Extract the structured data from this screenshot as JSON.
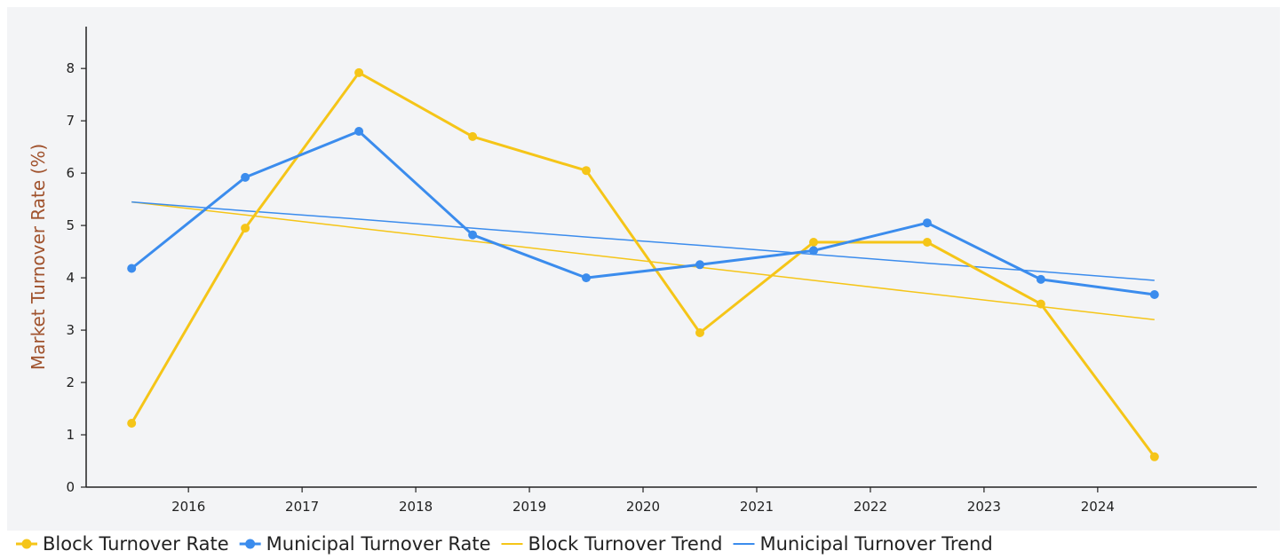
{
  "colors": {
    "block": "#f5c518",
    "municipal": "#3b8ced",
    "ylabel": "#a0522d",
    "plot_bg": "#f3f4f6",
    "axis": "#222222"
  },
  "chart_data": {
    "type": "line",
    "title": "",
    "xlabel": "",
    "ylabel": "Market Turnover Rate (%)",
    "xlim": [
      2015.1,
      2025.4
    ],
    "ylim": [
      0,
      8.8
    ],
    "x_ticks": [
      2016,
      2017,
      2018,
      2019,
      2020,
      2021,
      2022,
      2023,
      2024
    ],
    "y_ticks": [
      0,
      1,
      2,
      3,
      4,
      5,
      6,
      7,
      8
    ],
    "grid": false,
    "legend_position": "bottom",
    "x": [
      2015.5,
      2016.5,
      2017.5,
      2018.5,
      2019.5,
      2020.5,
      2021.5,
      2022.5,
      2023.5,
      2024.5
    ],
    "series": [
      {
        "name": "Block Turnover Rate",
        "style": "line-markers",
        "color_key": "block",
        "values": [
          1.22,
          4.95,
          7.92,
          6.7,
          6.05,
          2.95,
          4.68,
          4.68,
          3.5,
          0.58
        ]
      },
      {
        "name": "Municipal Turnover Rate",
        "style": "line-markers",
        "color_key": "municipal",
        "values": [
          4.18,
          5.92,
          6.8,
          4.82,
          4.0,
          4.25,
          4.52,
          5.05,
          3.97,
          3.68
        ]
      },
      {
        "name": "Block Turnover Trend",
        "style": "line",
        "color_key": "block",
        "values": [
          5.45,
          5.2,
          4.95,
          4.7,
          4.45,
          4.2,
          3.95,
          3.7,
          3.45,
          3.2
        ]
      },
      {
        "name": "Municipal Turnover Trend",
        "style": "line",
        "color_key": "municipal",
        "values": [
          5.45,
          5.28,
          5.12,
          4.95,
          4.78,
          4.62,
          4.45,
          4.28,
          4.12,
          3.95
        ]
      }
    ]
  }
}
